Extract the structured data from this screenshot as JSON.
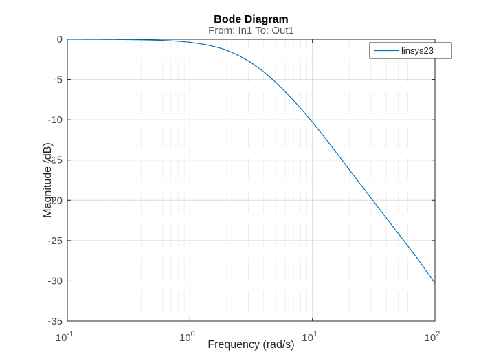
{
  "chart_data": {
    "type": "line",
    "title": "Bode Diagram",
    "subtitle": "From: In1  To: Out1",
    "xlabel": "Frequency  (rad/s)",
    "ylabel": "Magnitude (dB)",
    "xscale": "log",
    "xlim": [
      0.1,
      100
    ],
    "ylim": [
      -35,
      0
    ],
    "x_ticks": [
      {
        "base": "10",
        "exp": "-1",
        "value": 0.1
      },
      {
        "base": "10",
        "exp": "0",
        "value": 1
      },
      {
        "base": "10",
        "exp": "1",
        "value": 10
      },
      {
        "base": "10",
        "exp": "2",
        "value": 100
      }
    ],
    "y_ticks": [
      "0",
      "-5",
      "-10",
      "-15",
      "-20",
      "-25",
      "-30",
      "-35"
    ],
    "grid": true,
    "legend": {
      "position": "top-right",
      "entries": [
        "linsys23"
      ]
    },
    "series": [
      {
        "name": "linsys23",
        "color": "#0072bd",
        "x": [
          0.1,
          0.2,
          0.3,
          0.5,
          0.7,
          1,
          1.5,
          2,
          3,
          4,
          5,
          7,
          10,
          15,
          20,
          30,
          50,
          70,
          100
        ],
        "y": [
          0,
          -0.02,
          -0.04,
          -0.1,
          -0.19,
          -0.38,
          -0.83,
          -1.38,
          -2.7,
          -4.05,
          -5.33,
          -7.6,
          -10.3,
          -13.7,
          -16.2,
          -19.7,
          -24.1,
          -27.0,
          -30.3
        ]
      }
    ]
  }
}
